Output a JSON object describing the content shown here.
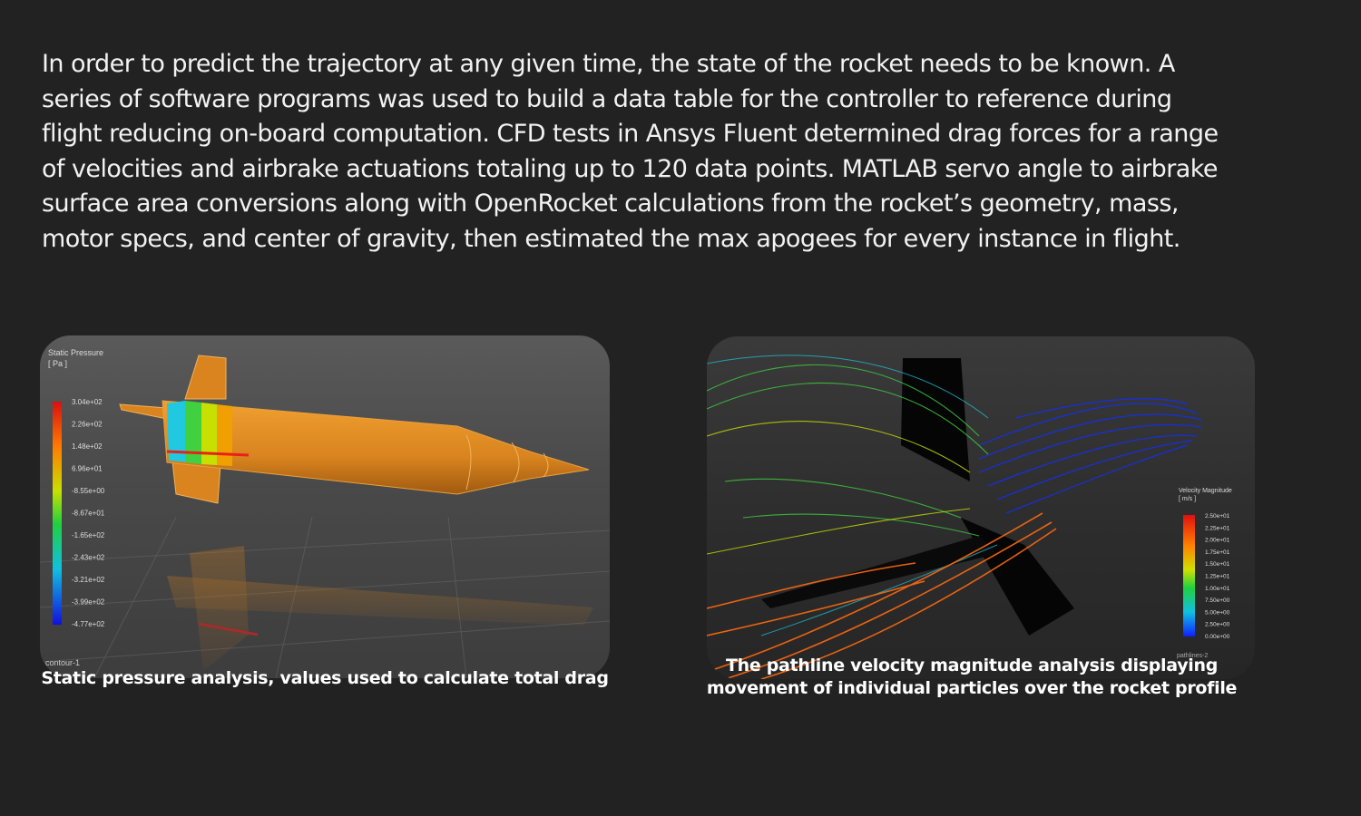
{
  "intro": {
    "lines": [
      "In order to predict the trajectory at any given time, the state of the rocket needs to be known. A",
      "series of software programs  was used to build a data table for the controller to reference during",
      "flight reducing on-board computation. CFD tests in Ansys Fluent determined drag forces for a range",
      "of velocities and airbrake actuations totaling up to 120 data points. MATLAB servo angle to airbrake",
      "surface area conversions along with OpenRocket calculations from the rocket’s geometry, mass,",
      "motor specs, and center of gravity, then estimated the max apogees for every instance in flight."
    ]
  },
  "pressure_figure": {
    "legend_title": "Static Pressure",
    "legend_unit": "[ Pa ]",
    "legend_values": [
      "3.04e+02",
      "2.26e+02",
      "1.48e+02",
      "6.96e+01",
      "-8.55e+00",
      "-8.67e+01",
      "-1.65e+02",
      "-2.43e+02",
      "-3.21e+02",
      "-3.99e+02",
      "-4.77e+02"
    ],
    "footer_label": "contour-1",
    "caption": "Static pressure analysis, values used to calculate total drag"
  },
  "velocity_figure": {
    "legend_title": "Velocity Magnitude",
    "legend_unit": "[ m/s ]",
    "legend_values": [
      "2.50e+01",
      "2.25e+01",
      "2.00e+01",
      "1.75e+01",
      "1.50e+01",
      "1.25e+01",
      "1.00e+01",
      "7.50e+00",
      "5.00e+00",
      "2.50e+00",
      "0.00e+00"
    ],
    "footer_label": "pathlines-2",
    "caption_lines": [
      "The pathline velocity magnitude analysis displaying",
      "movement of individual particles over the rocket profile"
    ]
  },
  "colors": {
    "background": "#222222",
    "text": "#f2f2f2",
    "rocket_body": "#d9841f",
    "pressure_high": "#e8201a",
    "pressure_low": "#1a1adc",
    "velocity_high": "#ff4a10",
    "velocity_low": "#1020ff"
  }
}
